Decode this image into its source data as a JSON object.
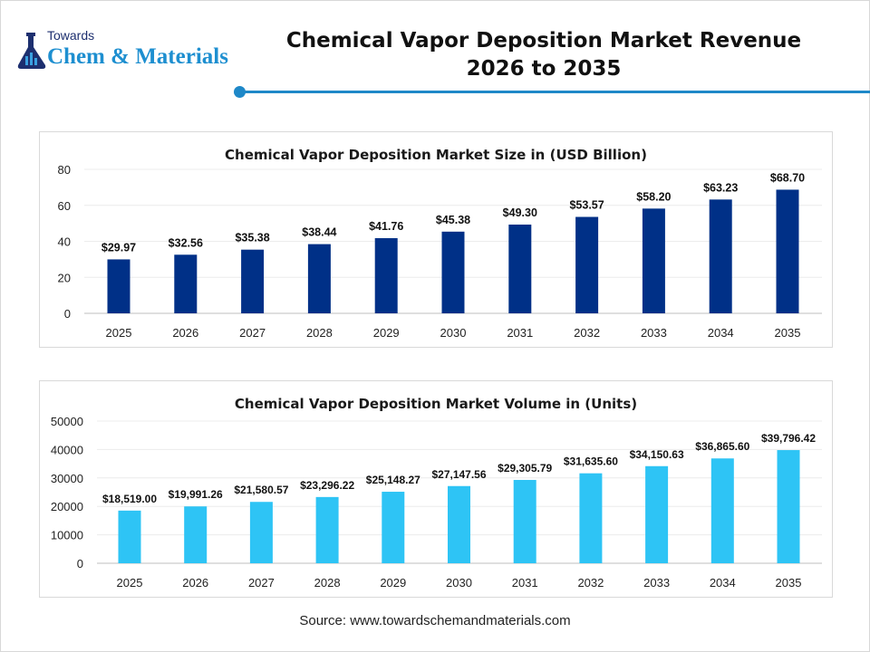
{
  "logo": {
    "top_text": "Towards",
    "main_text": "Chem & Materials"
  },
  "header": {
    "title_line1": "Chemical Vapor Deposition Market Revenue",
    "title_line2": "2026 to 2035",
    "accent_color": "#1e88c8"
  },
  "chart_data": [
    {
      "type": "bar",
      "title": "Chemical Vapor Deposition Market Size in (USD Billion)",
      "categories": [
        "2025",
        "2026",
        "2027",
        "2028",
        "2029",
        "2030",
        "2031",
        "2032",
        "2033",
        "2034",
        "2035"
      ],
      "values": [
        29.97,
        32.56,
        35.38,
        38.44,
        41.76,
        45.38,
        49.3,
        53.57,
        58.2,
        63.23,
        68.7
      ],
      "data_labels": [
        "$29.97",
        "$32.56",
        "$35.38",
        "$38.44",
        "$41.76",
        "$45.38",
        "$49.30",
        "$53.57",
        "$58.20",
        "$63.23",
        "$68.70"
      ],
      "ylim": [
        0,
        80
      ],
      "yticks": [
        "0",
        "20",
        "40",
        "60",
        "80"
      ],
      "grid": true,
      "color": "#003087"
    },
    {
      "type": "bar",
      "title": "Chemical Vapor Deposition Market Volume in (Units)",
      "categories": [
        "2025",
        "2026",
        "2027",
        "2028",
        "2029",
        "2030",
        "2031",
        "2032",
        "2033",
        "2034",
        "2035"
      ],
      "values": [
        18519.0,
        19991.26,
        21580.57,
        23296.22,
        25148.27,
        27147.56,
        29305.79,
        31635.6,
        34150.63,
        36865.6,
        39796.42
      ],
      "data_labels": [
        "$18,519.00",
        "$19,991.26",
        "$21,580.57",
        "$23,296.22",
        "$25,148.27",
        "$27,147.56",
        "$29,305.79",
        "$31,635.60",
        "$34,150.63",
        "$36,865.60",
        "$39,796.42"
      ],
      "ylim": [
        0,
        50000
      ],
      "yticks": [
        "0",
        "10000",
        "20000",
        "30000",
        "40000",
        "50000"
      ],
      "grid": true,
      "color": "#2ec4f5"
    }
  ],
  "source": "Source: www.towardschemandmaterials.com"
}
